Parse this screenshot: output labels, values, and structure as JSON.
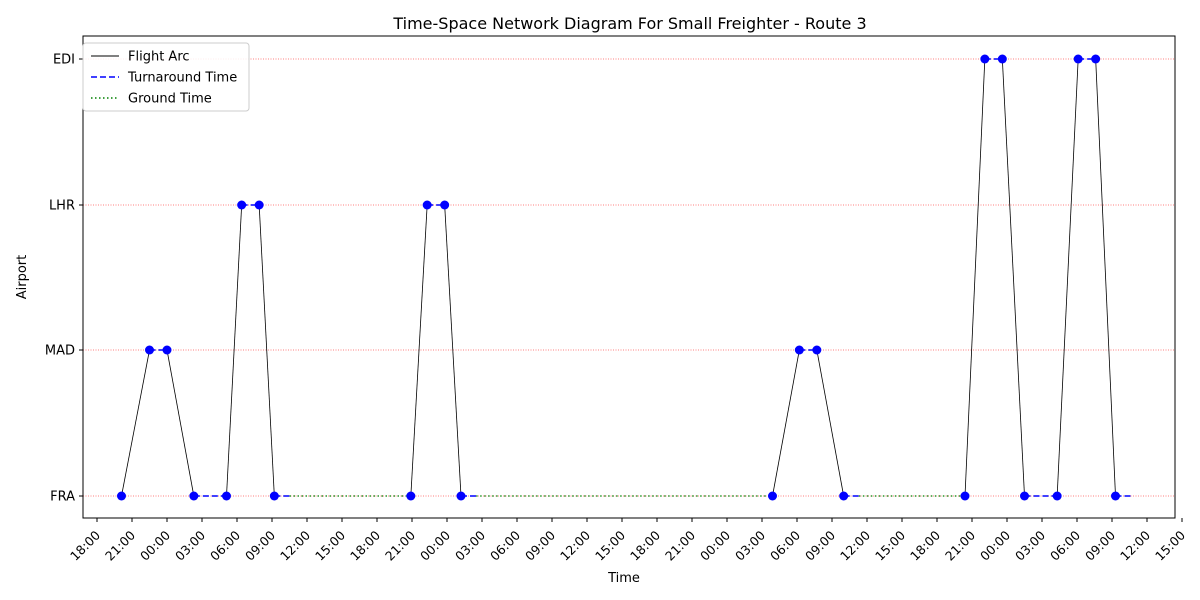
{
  "chart_data": {
    "type": "line",
    "title": "Time-Space Network Diagram For Small Freighter - Route 3",
    "xlabel": "Time",
    "ylabel": "Airport",
    "airports": [
      "FRA",
      "MAD",
      "LHR",
      "EDI"
    ],
    "x_ticks": [
      "18:00",
      "21:00",
      "00:00",
      "03:00",
      "06:00",
      "09:00",
      "12:00",
      "15:00",
      "18:00",
      "21:00",
      "00:00",
      "03:00",
      "06:00",
      "09:00",
      "12:00",
      "15:00",
      "18:00",
      "21:00",
      "00:00",
      "03:00",
      "06:00",
      "09:00",
      "12:00",
      "15:00",
      "18:00",
      "21:00",
      "00:00",
      "03:00",
      "06:00",
      "09:00",
      "12:00",
      "15:00"
    ],
    "xlim_hours": [
      -7.2,
      86.4
    ],
    "grid": "horizontal dotted red at airport levels",
    "legend_position": "top-left",
    "legend": [
      {
        "label": "Flight Arc",
        "style": "solid",
        "color": "#000000"
      },
      {
        "label": "Turnaround Time",
        "style": "dashed",
        "color": "#0000ff"
      },
      {
        "label": "Ground Time",
        "style": "dotted",
        "color": "#008000"
      }
    ],
    "point_color": "#0000ff",
    "flights": [
      {
        "from": "FRA",
        "to": "MAD",
        "dep": -3.9,
        "arr": -1.5
      },
      {
        "from": "MAD",
        "to": "FRA",
        "dep": 0.0,
        "arr": 2.3
      },
      {
        "from": "FRA",
        "to": "LHR",
        "dep": 5.1,
        "arr": 6.4
      },
      {
        "from": "LHR",
        "to": "FRA",
        "dep": 7.9,
        "arr": 9.2
      },
      {
        "from": "FRA",
        "to": "LHR",
        "dep": 20.9,
        "arr": 22.3
      },
      {
        "from": "LHR",
        "to": "FRA",
        "dep": 23.8,
        "arr": 25.2
      },
      {
        "from": "FRA",
        "to": "MAD",
        "dep": 51.9,
        "arr": 54.2
      },
      {
        "from": "MAD",
        "to": "FRA",
        "dep": 55.7,
        "arr": 58.0
      },
      {
        "from": "FRA",
        "to": "EDI",
        "dep": 68.4,
        "arr": 70.1
      },
      {
        "from": "EDI",
        "to": "FRA",
        "dep": 71.6,
        "arr": 73.5
      },
      {
        "from": "FRA",
        "to": "EDI",
        "dep": 76.3,
        "arr": 78.1
      },
      {
        "from": "EDI",
        "to": "FRA",
        "dep": 79.6,
        "arr": 81.3
      }
    ],
    "turnarounds": [
      {
        "airport": "MAD",
        "start": -1.5,
        "end": 0.0
      },
      {
        "airport": "FRA",
        "start": 2.3,
        "end": 5.1
      },
      {
        "airport": "LHR",
        "start": 6.4,
        "end": 7.9
      },
      {
        "airport": "FRA",
        "start": 9.2,
        "end": 10.5
      },
      {
        "airport": "LHR",
        "start": 22.3,
        "end": 23.8
      },
      {
        "airport": "FRA",
        "start": 25.2,
        "end": 26.5
      },
      {
        "airport": "MAD",
        "start": 54.2,
        "end": 55.7
      },
      {
        "airport": "FRA",
        "start": 58.0,
        "end": 59.3
      },
      {
        "airport": "EDI",
        "start": 70.1,
        "end": 71.6
      },
      {
        "airport": "FRA",
        "start": 73.5,
        "end": 76.3
      },
      {
        "airport": "EDI",
        "start": 78.1,
        "end": 79.6
      },
      {
        "airport": "FRA",
        "start": 81.3,
        "end": 82.6
      }
    ],
    "ground_times": [
      {
        "airport": "FRA",
        "start": 10.5,
        "end": 20.9
      },
      {
        "airport": "FRA",
        "start": 26.5,
        "end": 51.9
      },
      {
        "airport": "FRA",
        "start": 59.3,
        "end": 68.4
      }
    ]
  }
}
